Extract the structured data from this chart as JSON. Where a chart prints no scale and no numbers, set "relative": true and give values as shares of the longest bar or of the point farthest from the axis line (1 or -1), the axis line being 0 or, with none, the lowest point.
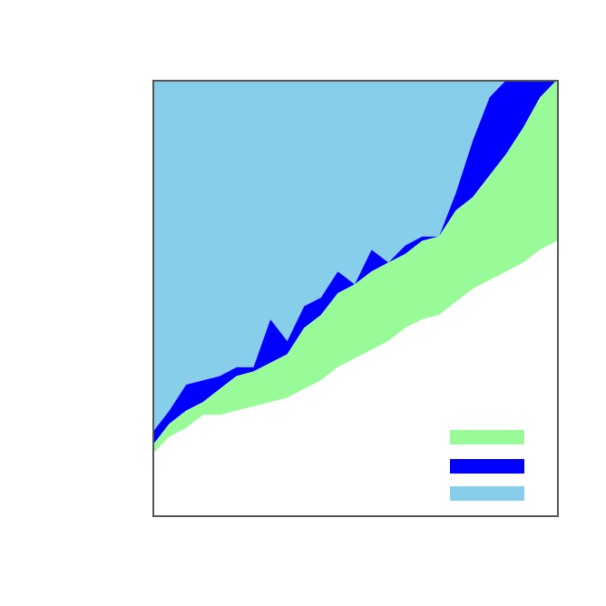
{
  "chart_data": {
    "type": "area",
    "relative": true,
    "stacked": true,
    "categories": [
      null,
      null,
      null,
      null,
      null,
      null,
      null,
      null,
      null,
      null,
      null,
      null,
      null,
      null,
      null,
      null,
      null,
      null,
      null,
      null,
      null,
      null,
      null,
      null,
      null
    ],
    "series": [
      {
        "color": "#ffffff",
        "values": [
          0.14,
          0.18,
          0.2,
          0.23,
          0.23,
          0.24,
          0.25,
          0.26,
          0.27,
          0.29,
          0.31,
          0.34,
          0.36,
          0.38,
          0.4,
          0.43,
          0.45,
          0.46,
          0.49,
          0.52,
          0.54,
          0.56,
          0.58,
          0.61,
          0.63
        ]
      },
      {
        "color": "#98fb98",
        "values": [
          0.02,
          0.03,
          0.04,
          0.03,
          0.06,
          0.08,
          0.08,
          0.09,
          0.1,
          0.14,
          0.15,
          0.17,
          0.17,
          0.18,
          0.18,
          0.17,
          0.18,
          0.18,
          0.21,
          0.21,
          0.24,
          0.27,
          0.31,
          0.35,
          0.37
        ]
      },
      {
        "color": "#0000ff",
        "values": [
          0.03,
          0.03,
          0.06,
          0.05,
          0.03,
          0.02,
          0.01,
          0.1,
          0.03,
          0.05,
          0.04,
          0.05,
          0,
          0.05,
          0,
          0.02,
          0.01,
          0,
          0.04,
          0.13,
          0.18,
          0.17,
          0.11,
          0.04,
          0
        ]
      },
      {
        "color": "#87ceeb",
        "values": [
          0.81,
          0.76,
          0.7,
          0.69,
          0.68,
          0.66,
          0.66,
          0.55,
          0.6,
          0.52,
          0.5,
          0.44,
          0.47,
          0.39,
          0.42,
          0.38,
          0.36,
          0.36,
          0.26,
          0.14,
          0.04,
          0,
          0,
          0,
          0
        ]
      }
    ]
  }
}
